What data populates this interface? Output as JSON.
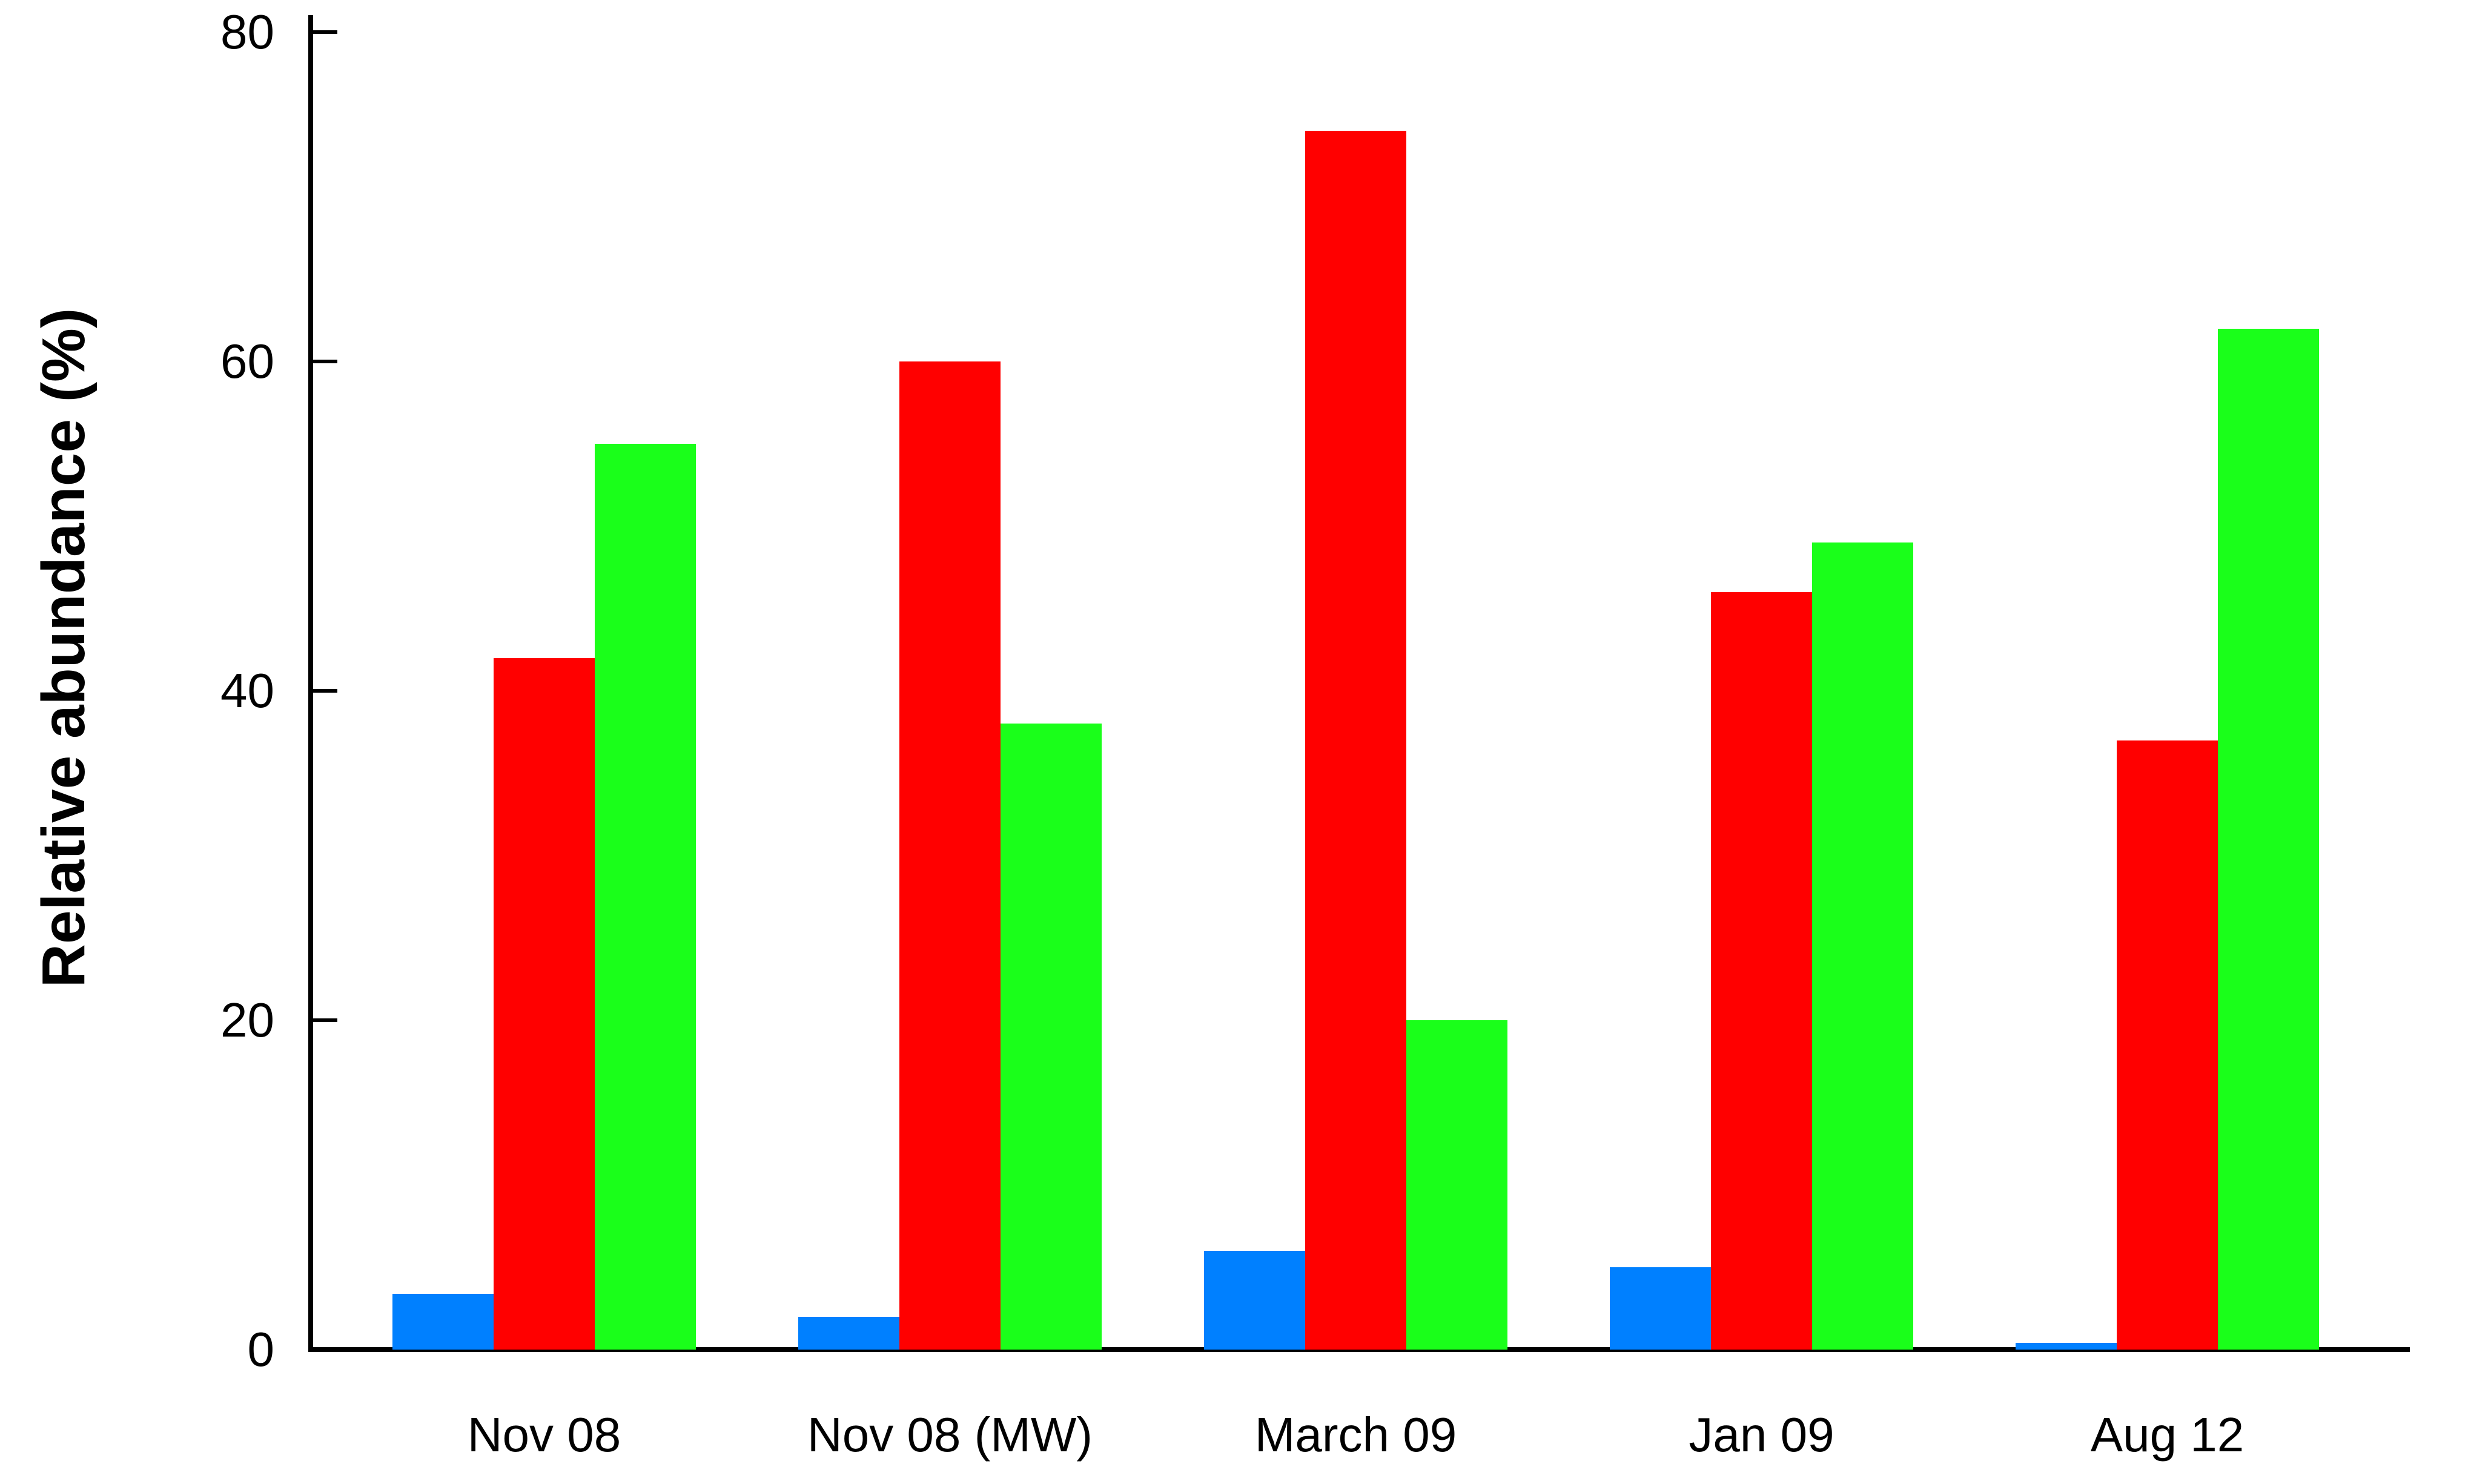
{
  "chart_data": {
    "type": "bar",
    "title": "",
    "xlabel": "",
    "ylabel": "Relative abundance (%)",
    "categories": [
      "Nov 08",
      "Nov 08 (MW)",
      "March 09",
      "Jan 09",
      "Aug 12"
    ],
    "series": [
      {
        "name": "blue",
        "color": "#0080FF",
        "values": [
          3.4,
          2,
          6,
          5,
          0.4
        ]
      },
      {
        "name": "red",
        "color": "#FF0000",
        "values": [
          42,
          60,
          74,
          46,
          37
        ]
      },
      {
        "name": "green",
        "color": "#1AFF1A",
        "values": [
          55,
          38,
          20,
          49,
          62
        ]
      }
    ],
    "ylim": [
      0,
      80
    ],
    "yticks": [
      0,
      20,
      40,
      60,
      80
    ],
    "grid": false,
    "legend": "none",
    "axis_color": "#000000",
    "background_color": "#FFFFFF"
  }
}
